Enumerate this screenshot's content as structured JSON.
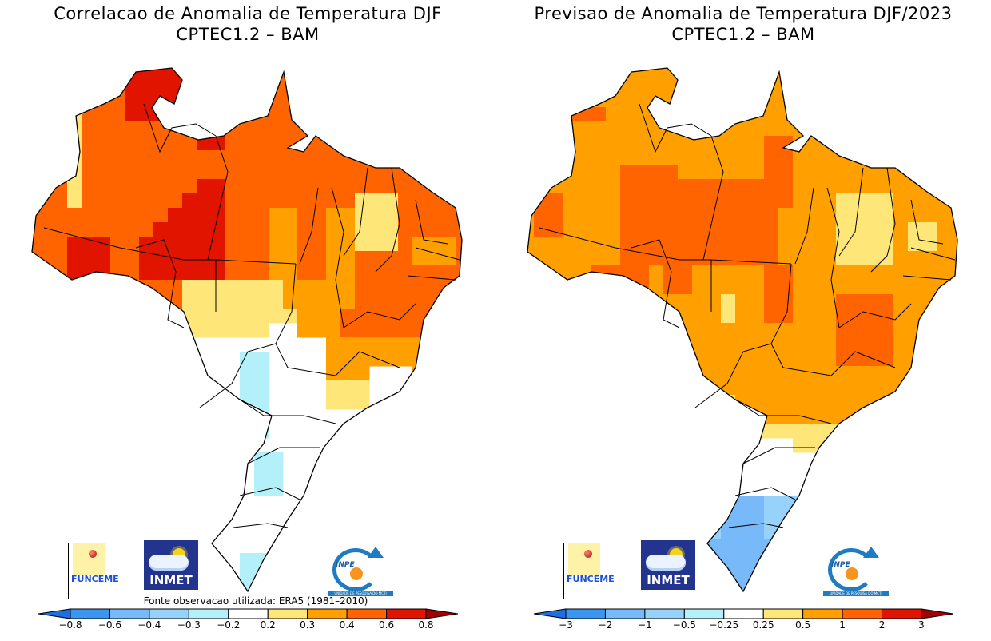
{
  "panels": [
    {
      "id": "correlation",
      "title_line1": "Correlacao de Anomalia de Temperatura DJF",
      "title_line2": "CPTEC1.2 – BAM",
      "source_note": "Fonte observacao utilizada: ERA5 (1981–2010)",
      "colorbar": {
        "labels": [
          "−0.8",
          "−0.6",
          "−0.4",
          "−0.3",
          "−0.2",
          "0.2",
          "0.3",
          "0.4",
          "0.6",
          "0.8"
        ],
        "colors": [
          "#1e6ee6",
          "#3c96f0",
          "#78b9fa",
          "#96d2fa",
          "#b4f0fa",
          "#ffffff",
          "#ffe678",
          "#ffa000",
          "#ff6400",
          "#e11400",
          "#a50000"
        ]
      },
      "map_summary": "Strong positive correlation (0.4–0.8) over North and Northeast Brazil; weak/neutral over Center-South; small negative patches (-0.3 to -0.2) in Mato Grosso do Sul and near Rio Grande do Sul coast"
    },
    {
      "id": "forecast",
      "title_line1": "Previsao de Anomalia de Temperatura DJF/2023",
      "title_line2": "CPTEC1.2 – BAM",
      "colorbar": {
        "labels": [
          "−3",
          "−2",
          "−1",
          "−0.5",
          "−0.25",
          "0.25",
          "0.5",
          "1",
          "2",
          "3"
        ],
        "colors": [
          "#1e6ee6",
          "#3c96f0",
          "#78b9fa",
          "#96d2fa",
          "#b4f0fa",
          "#ffffff",
          "#ffe678",
          "#ffa000",
          "#ff6400",
          "#e11400",
          "#a50000"
        ]
      },
      "map_summary": "Warm anomalies 0.5–2 °C over most of Brazil; near normal in the Southeast coast/Sao Paulo; cool anomalies -1 to -0.25 over Rio Grande do Sul"
    }
  ],
  "logos": {
    "funceme": "FUNCEME",
    "inmet": "INMET",
    "inpe": "INPE",
    "inpe_band": "UNIDADE DE PESQUISA DO MCTI"
  }
}
